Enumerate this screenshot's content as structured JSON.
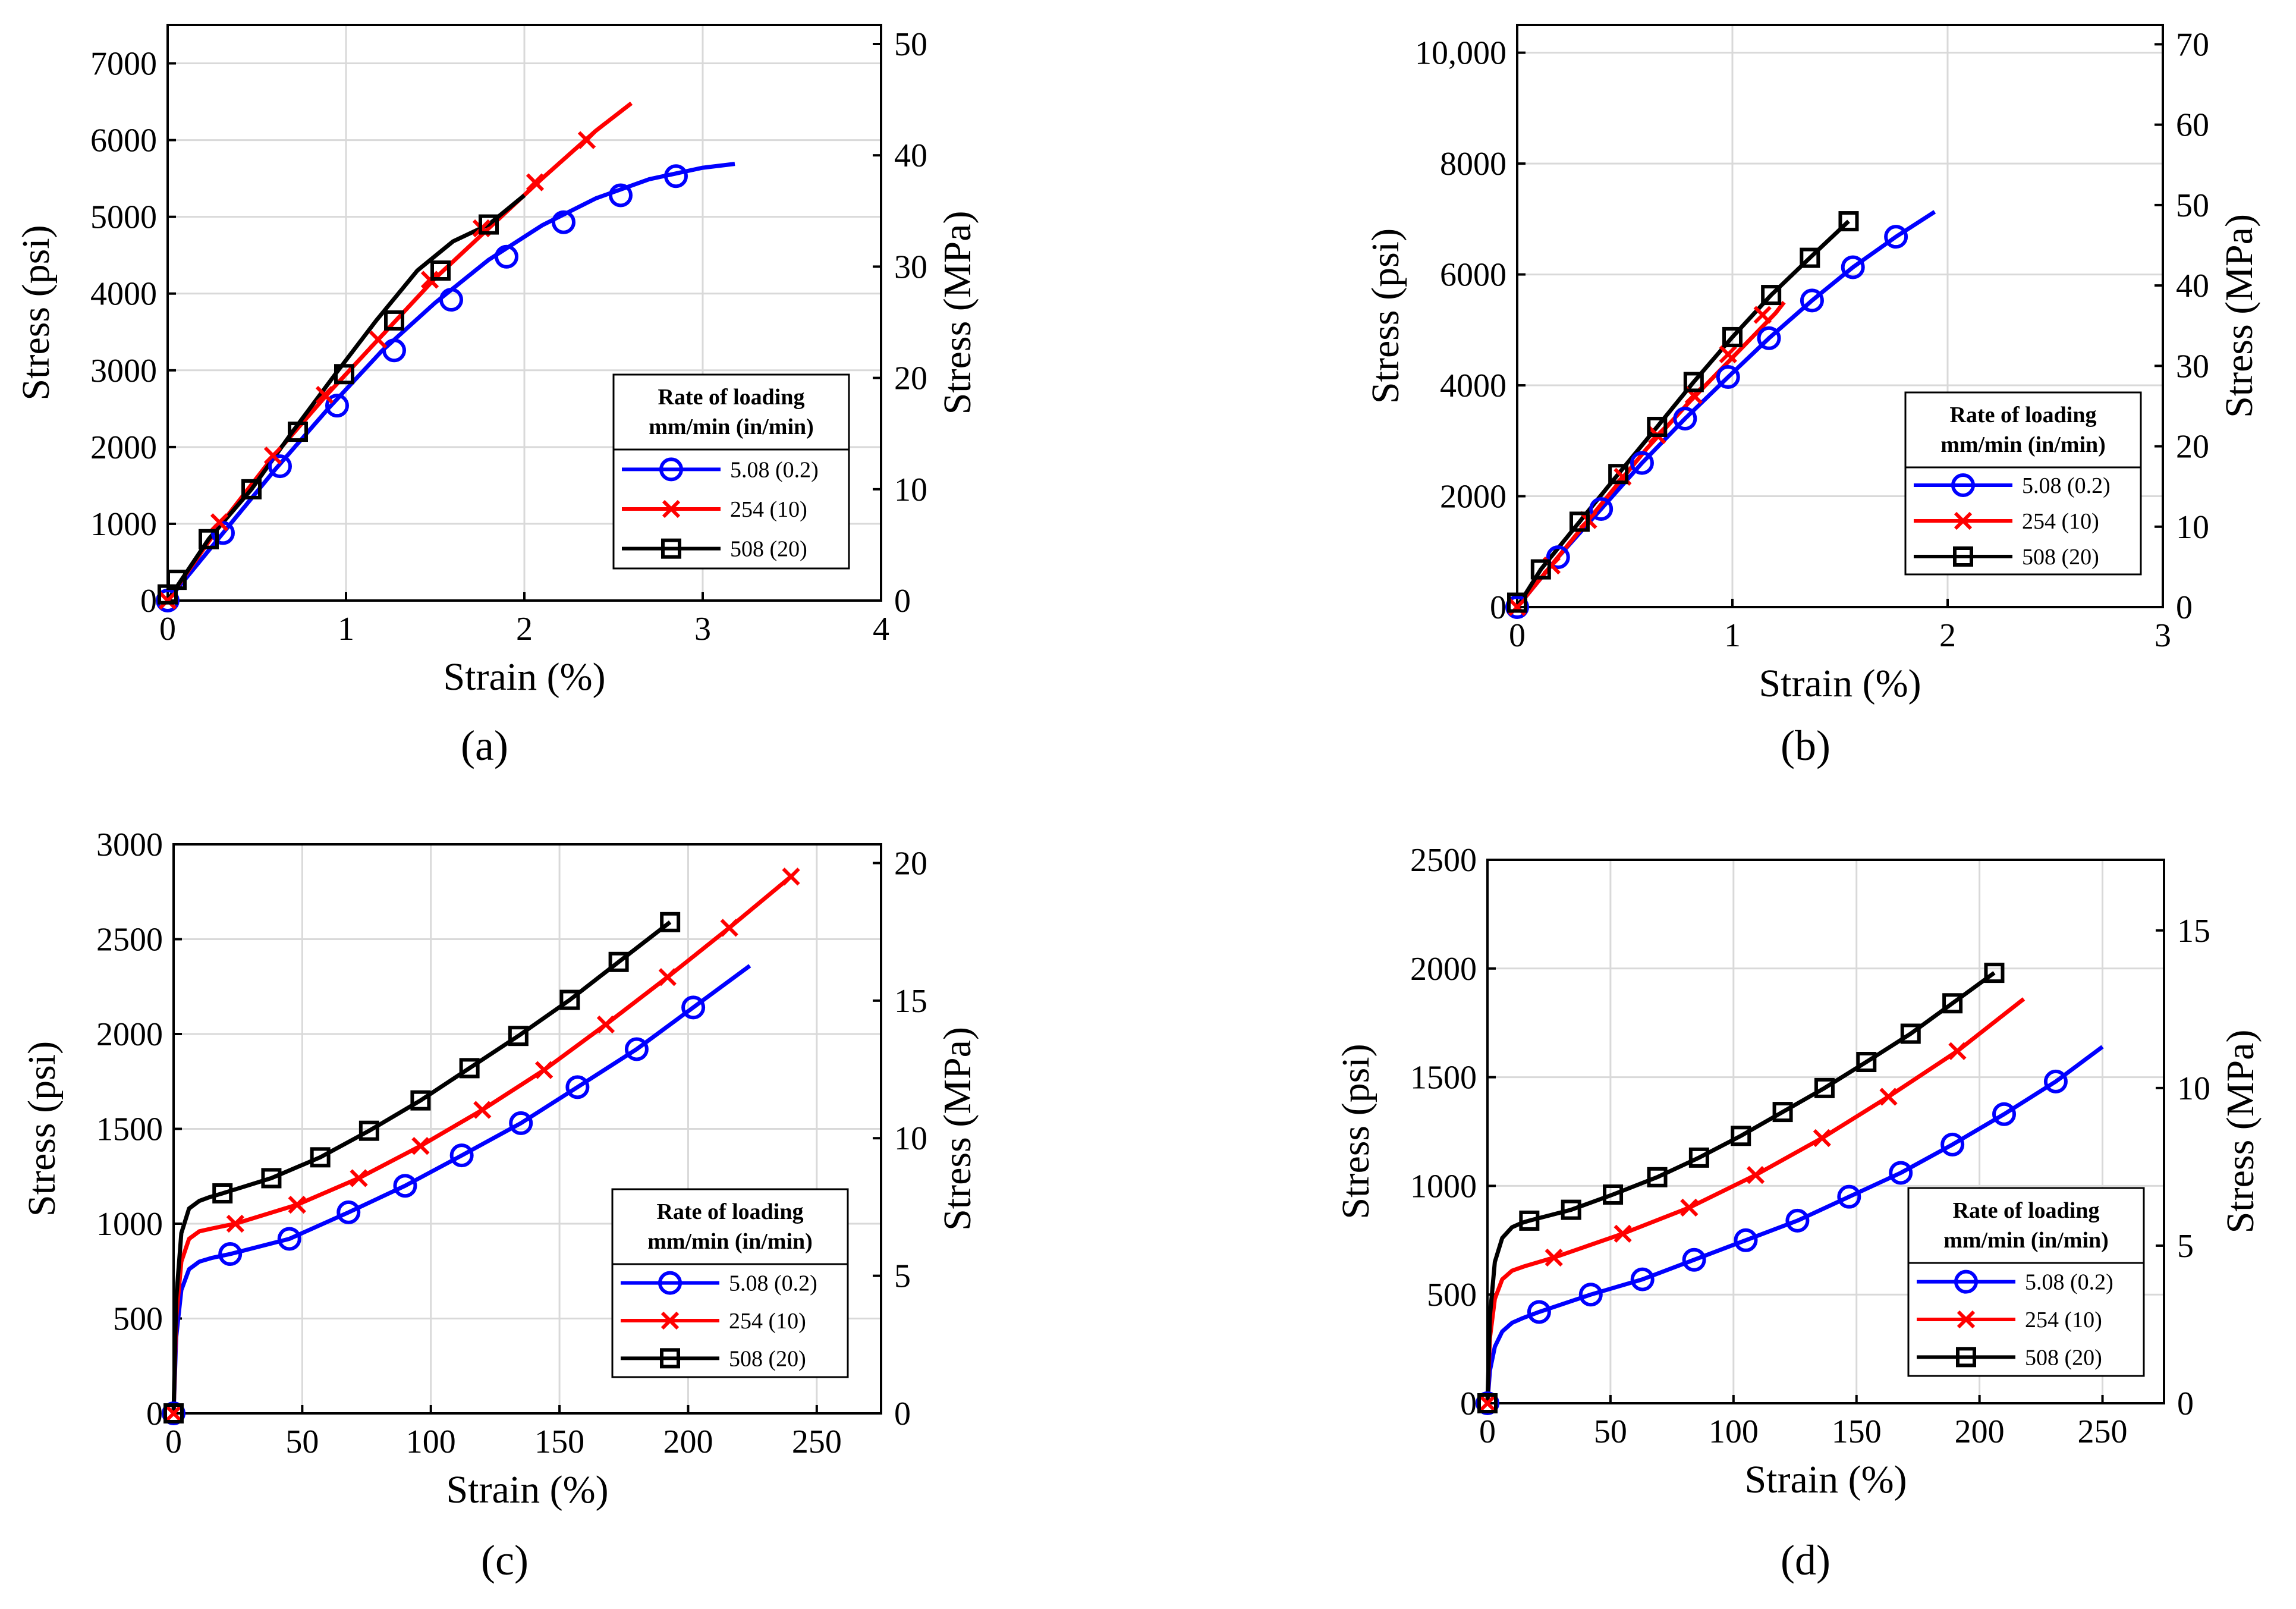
{
  "figure": {
    "panel_labels": [
      "(a)",
      "(b)",
      "(c)",
      "(d)"
    ]
  },
  "styles": {
    "series_colors": [
      "#0000ff",
      "#ff0000",
      "#000000"
    ],
    "series_markers": [
      "circle",
      "cross",
      "square"
    ],
    "grid_color": "#d9d9d9"
  },
  "chart_data": [
    {
      "type": "line",
      "panel": "(a)",
      "xlabel": "Strain (%)",
      "ylabel": "Stress (psi)",
      "ylabel_right": "Stress (MPa)",
      "xlim": [
        0,
        4
      ],
      "ylim": [
        0,
        7500
      ],
      "xticks": [
        0,
        1,
        2,
        3,
        4
      ],
      "xtick_labels": [
        "0",
        "1",
        "2",
        "3",
        "4"
      ],
      "yticks": [
        0,
        1000,
        2000,
        3000,
        4000,
        5000,
        6000,
        7000
      ],
      "ytick_labels": [
        "0",
        "1000",
        "2000",
        "3000",
        "4000",
        "5000",
        "6000",
        "7000"
      ],
      "y2lim": [
        0,
        51.71
      ],
      "y2ticks": [
        0,
        10,
        20,
        30,
        40,
        50
      ],
      "y2tick_labels": [
        "0",
        "10",
        "20",
        "30",
        "40",
        "50"
      ],
      "grid": true,
      "legend": {
        "title_line1": "Rate of loading",
        "title_line2": "mm/min (in/min)",
        "entries": [
          "5.08 (0.2)",
          "254  (10)",
          "508  (20)"
        ],
        "position": "center-right"
      },
      "series": [
        {
          "name": "5.08 (0.2)",
          "x": [
            0,
            0.3,
            0.6,
            0.9,
            1.2,
            1.5,
            1.8,
            2.1,
            2.4,
            2.7,
            3.0,
            3.18
          ],
          "y": [
            0,
            850,
            1700,
            2500,
            3250,
            3880,
            4440,
            4890,
            5240,
            5490,
            5640,
            5690
          ],
          "marker_x": [
            0,
            0.31,
            0.63,
            0.95,
            1.27,
            1.59,
            1.9,
            2.22,
            2.54,
            2.85
          ],
          "marker_y": [
            0,
            880,
            1750,
            2540,
            3260,
            3920,
            4480,
            4930,
            5280,
            5530
          ]
        },
        {
          "name": "254  (10)",
          "x": [
            0,
            0.3,
            0.6,
            0.9,
            1.2,
            1.5,
            1.8,
            2.1,
            2.4,
            2.6
          ],
          "y": [
            0,
            1000,
            1900,
            2700,
            3450,
            4200,
            4850,
            5500,
            6120,
            6480
          ],
          "marker_x": [
            0,
            0.29,
            0.59,
            0.88,
            1.18,
            1.47,
            1.76,
            2.06,
            2.35
          ],
          "marker_y": [
            0,
            1020,
            1890,
            2680,
            3400,
            4180,
            4850,
            5450,
            6000
          ]
        },
        {
          "name": "508  (20)",
          "x": [
            0,
            0.23,
            0.47,
            0.7,
            0.94,
            1.17,
            1.4,
            1.6,
            1.8,
            2.0
          ],
          "y": [
            0,
            800,
            1450,
            2200,
            2950,
            3650,
            4300,
            4680,
            4900,
            5280
          ],
          "marker_x": [
            0,
            0.05,
            0.23,
            0.47,
            0.73,
            0.99,
            1.27,
            1.53,
            1.8
          ],
          "marker_y": [
            80,
            270,
            800,
            1450,
            2200,
            2950,
            3650,
            4300,
            4900
          ]
        }
      ]
    },
    {
      "type": "line",
      "panel": "(b)",
      "xlabel": "Strain (%)",
      "ylabel": "Stress (psi)",
      "ylabel_right": "Stress (MPa)",
      "xlim": [
        0,
        3
      ],
      "ylim": [
        0,
        10500
      ],
      "xticks": [
        0,
        1,
        2,
        3
      ],
      "xtick_labels": [
        "0",
        "1",
        "2",
        "3"
      ],
      "yticks": [
        0,
        2000,
        4000,
        6000,
        8000,
        10000
      ],
      "ytick_labels": [
        "0",
        "2000",
        "4000",
        "6000",
        "8000",
        "10,000"
      ],
      "y2lim": [
        0,
        72.4
      ],
      "y2ticks": [
        0,
        10,
        20,
        30,
        40,
        50,
        60,
        70
      ],
      "y2tick_labels": [
        "0",
        "10",
        "20",
        "30",
        "40",
        "50",
        "60",
        "70"
      ],
      "grid": true,
      "legend": {
        "title_line1": "Rate of loading",
        "title_line2": "mm/min (in/min)",
        "entries": [
          "5.08 (0.2)",
          "254  (10)",
          "508  (20)"
        ],
        "position": "bottom-right"
      },
      "series": [
        {
          "name": "5.08 (0.2)",
          "x": [
            0,
            0.19,
            0.39,
            0.58,
            0.78,
            0.98,
            1.17,
            1.37,
            1.56,
            1.76,
            1.94
          ],
          "y": [
            0,
            900,
            1770,
            2600,
            3400,
            4150,
            4850,
            5530,
            6130,
            6680,
            7130
          ],
          "marker_x": [
            0,
            0.19,
            0.39,
            0.58,
            0.78,
            0.98,
            1.17,
            1.37,
            1.56,
            1.76
          ],
          "marker_y": [
            0,
            900,
            1770,
            2600,
            3400,
            4150,
            4850,
            5530,
            6130,
            6680
          ]
        },
        {
          "name": "254  (10)",
          "x": [
            0,
            0.2,
            0.4,
            0.6,
            0.8,
            1.0,
            1.2,
            1.24
          ],
          "y": [
            0,
            950,
            1900,
            2850,
            3700,
            4500,
            5300,
            5500
          ],
          "marker_x": [
            0,
            0.16,
            0.33,
            0.49,
            0.65,
            0.82,
            0.98,
            1.14
          ],
          "marker_y": [
            0,
            750,
            1570,
            2350,
            3100,
            3820,
            4560,
            5270
          ]
        },
        {
          "name": "508  (20)",
          "x": [
            0,
            0.11,
            0.29,
            0.47,
            0.65,
            0.82,
            1.0,
            1.18,
            1.36,
            1.54
          ],
          "y": [
            0,
            680,
            1540,
            2400,
            3250,
            4060,
            4870,
            5630,
            6300,
            6960
          ],
          "marker_x": [
            0,
            0.11,
            0.29,
            0.47,
            0.65,
            0.82,
            1.0,
            1.18,
            1.36,
            1.54
          ],
          "marker_y": [
            80,
            680,
            1540,
            2400,
            3250,
            4060,
            4870,
            5630,
            6300,
            6960
          ]
        }
      ]
    },
    {
      "type": "line",
      "panel": "(c)",
      "xlabel": "Strain (%)",
      "ylabel": "Stress (psi)",
      "ylabel_right": "Stress (MPa)",
      "xlim": [
        0,
        275
      ],
      "ylim": [
        0,
        3000
      ],
      "xticks": [
        0,
        50,
        100,
        150,
        200,
        250
      ],
      "xtick_labels": [
        "0",
        "50",
        "100",
        "150",
        "200",
        "250"
      ],
      "yticks": [
        0,
        500,
        1000,
        1500,
        2000,
        2500,
        3000
      ],
      "ytick_labels": [
        "0",
        "500",
        "1000",
        "1500",
        "2000",
        "2500",
        "3000"
      ],
      "y2lim": [
        0,
        20.68
      ],
      "y2ticks": [
        0,
        5,
        10,
        15,
        20
      ],
      "y2tick_labels": [
        "0",
        "5",
        "10",
        "15",
        "20"
      ],
      "grid": true,
      "legend": {
        "title_line1": "Rate of loading",
        "title_line2": "mm/min (in/min)",
        "entries": [
          "5.08 (0.2)",
          "254  (10)",
          "508  (20)"
        ],
        "position": "bottom-right"
      },
      "series": [
        {
          "name": "5.08 (0.2)",
          "x": [
            0,
            1,
            3,
            6,
            10,
            15,
            22,
            45,
            68,
            90,
            112,
            135,
            157,
            180,
            202,
            224
          ],
          "y": [
            0,
            400,
            650,
            760,
            800,
            820,
            840,
            920,
            1060,
            1200,
            1360,
            1530,
            1720,
            1920,
            2140,
            2360
          ],
          "marker_x": [
            0,
            22,
            45,
            68,
            90,
            112,
            135,
            157,
            180,
            202
          ],
          "marker_y": [
            0,
            840,
            920,
            1060,
            1200,
            1360,
            1530,
            1720,
            1920,
            2140
          ]
        },
        {
          "name": "254  (10)",
          "x": [
            0,
            1,
            3,
            6,
            10,
            15,
            24,
            48,
            72,
            96,
            120,
            144,
            168,
            192,
            216,
            240
          ],
          "y": [
            0,
            500,
            800,
            920,
            960,
            975,
            1000,
            1100,
            1240,
            1410,
            1600,
            1810,
            2050,
            2300,
            2560,
            2830
          ],
          "marker_x": [
            0,
            24,
            48,
            72,
            96,
            120,
            144,
            168,
            192,
            216,
            240
          ],
          "marker_y": [
            0,
            1000,
            1100,
            1240,
            1410,
            1600,
            1810,
            2050,
            2300,
            2560,
            2830
          ]
        },
        {
          "name": "508  (20)",
          "x": [
            0,
            1,
            3,
            6,
            10,
            14,
            19,
            38,
            57,
            76,
            96,
            115,
            134,
            154,
            173,
            193
          ],
          "y": [
            0,
            600,
            950,
            1080,
            1120,
            1140,
            1160,
            1240,
            1350,
            1490,
            1650,
            1820,
            1990,
            2180,
            2380,
            2590
          ],
          "marker_x": [
            0,
            19,
            38,
            57,
            76,
            96,
            115,
            134,
            154,
            173,
            193
          ],
          "marker_y": [
            0,
            1160,
            1240,
            1350,
            1490,
            1650,
            1820,
            1990,
            2180,
            2380,
            2590
          ]
        }
      ]
    },
    {
      "type": "line",
      "panel": "(d)",
      "xlabel": "Strain (%)",
      "ylabel": "Stress (psi)",
      "ylabel_right": "Stress (MPa)",
      "xlim": [
        0,
        275
      ],
      "ylim": [
        0,
        2500
      ],
      "xticks": [
        0,
        50,
        100,
        150,
        200,
        250
      ],
      "xtick_labels": [
        "0",
        "50",
        "100",
        "150",
        "200",
        "250"
      ],
      "yticks": [
        0,
        500,
        1000,
        1500,
        2000,
        2500
      ],
      "ytick_labels": [
        "0",
        "500",
        "1000",
        "1500",
        "2000",
        "2500"
      ],
      "y2lim": [
        0,
        17.24
      ],
      "y2ticks": [
        0,
        5,
        10,
        15
      ],
      "y2tick_labels": [
        "0",
        "5",
        "10",
        "15"
      ],
      "grid": true,
      "legend": {
        "title_line1": "Rate of loading",
        "title_line2": "mm/min (in/min)",
        "entries": [
          "5.08 (0.2)",
          "254  (10)",
          "508  (20)"
        ],
        "position": "bottom-right"
      },
      "series": [
        {
          "name": "5.08 (0.2)",
          "x": [
            0,
            1,
            3,
            6,
            10,
            14,
            21,
            42,
            63,
            84,
            105,
            126,
            147,
            168,
            189,
            210,
            231,
            250
          ],
          "y": [
            0,
            150,
            260,
            330,
            370,
            390,
            420,
            500,
            570,
            660,
            750,
            840,
            950,
            1060,
            1190,
            1330,
            1480,
            1640
          ],
          "marker_x": [
            0,
            21,
            42,
            63,
            84,
            105,
            126,
            147,
            168,
            189,
            210,
            231
          ],
          "marker_y": [
            0,
            420,
            500,
            570,
            660,
            750,
            840,
            950,
            1060,
            1190,
            1330,
            1480
          ]
        },
        {
          "name": "254  (10)",
          "x": [
            0,
            1,
            3,
            6,
            10,
            15,
            27,
            55,
            82,
            109,
            136,
            163,
            191,
            218
          ],
          "y": [
            0,
            300,
            480,
            570,
            610,
            630,
            670,
            780,
            900,
            1050,
            1220,
            1410,
            1620,
            1860
          ],
          "marker_x": [
            0,
            27,
            55,
            82,
            109,
            136,
            163,
            191
          ],
          "marker_y": [
            0,
            670,
            780,
            900,
            1050,
            1220,
            1410,
            1620
          ]
        },
        {
          "name": "508  (20)",
          "x": [
            0,
            1,
            3,
            6,
            10,
            14,
            17,
            34,
            51,
            69,
            86,
            103,
            120,
            137,
            154,
            172,
            189,
            206
          ],
          "y": [
            0,
            400,
            650,
            760,
            810,
            830,
            840,
            890,
            960,
            1040,
            1130,
            1230,
            1340,
            1450,
            1570,
            1700,
            1840,
            1980
          ],
          "marker_x": [
            0,
            17,
            34,
            51,
            69,
            86,
            103,
            120,
            137,
            154,
            172,
            189,
            206
          ],
          "marker_y": [
            0,
            840,
            890,
            960,
            1040,
            1130,
            1230,
            1340,
            1450,
            1570,
            1700,
            1840,
            1980
          ]
        }
      ]
    }
  ]
}
